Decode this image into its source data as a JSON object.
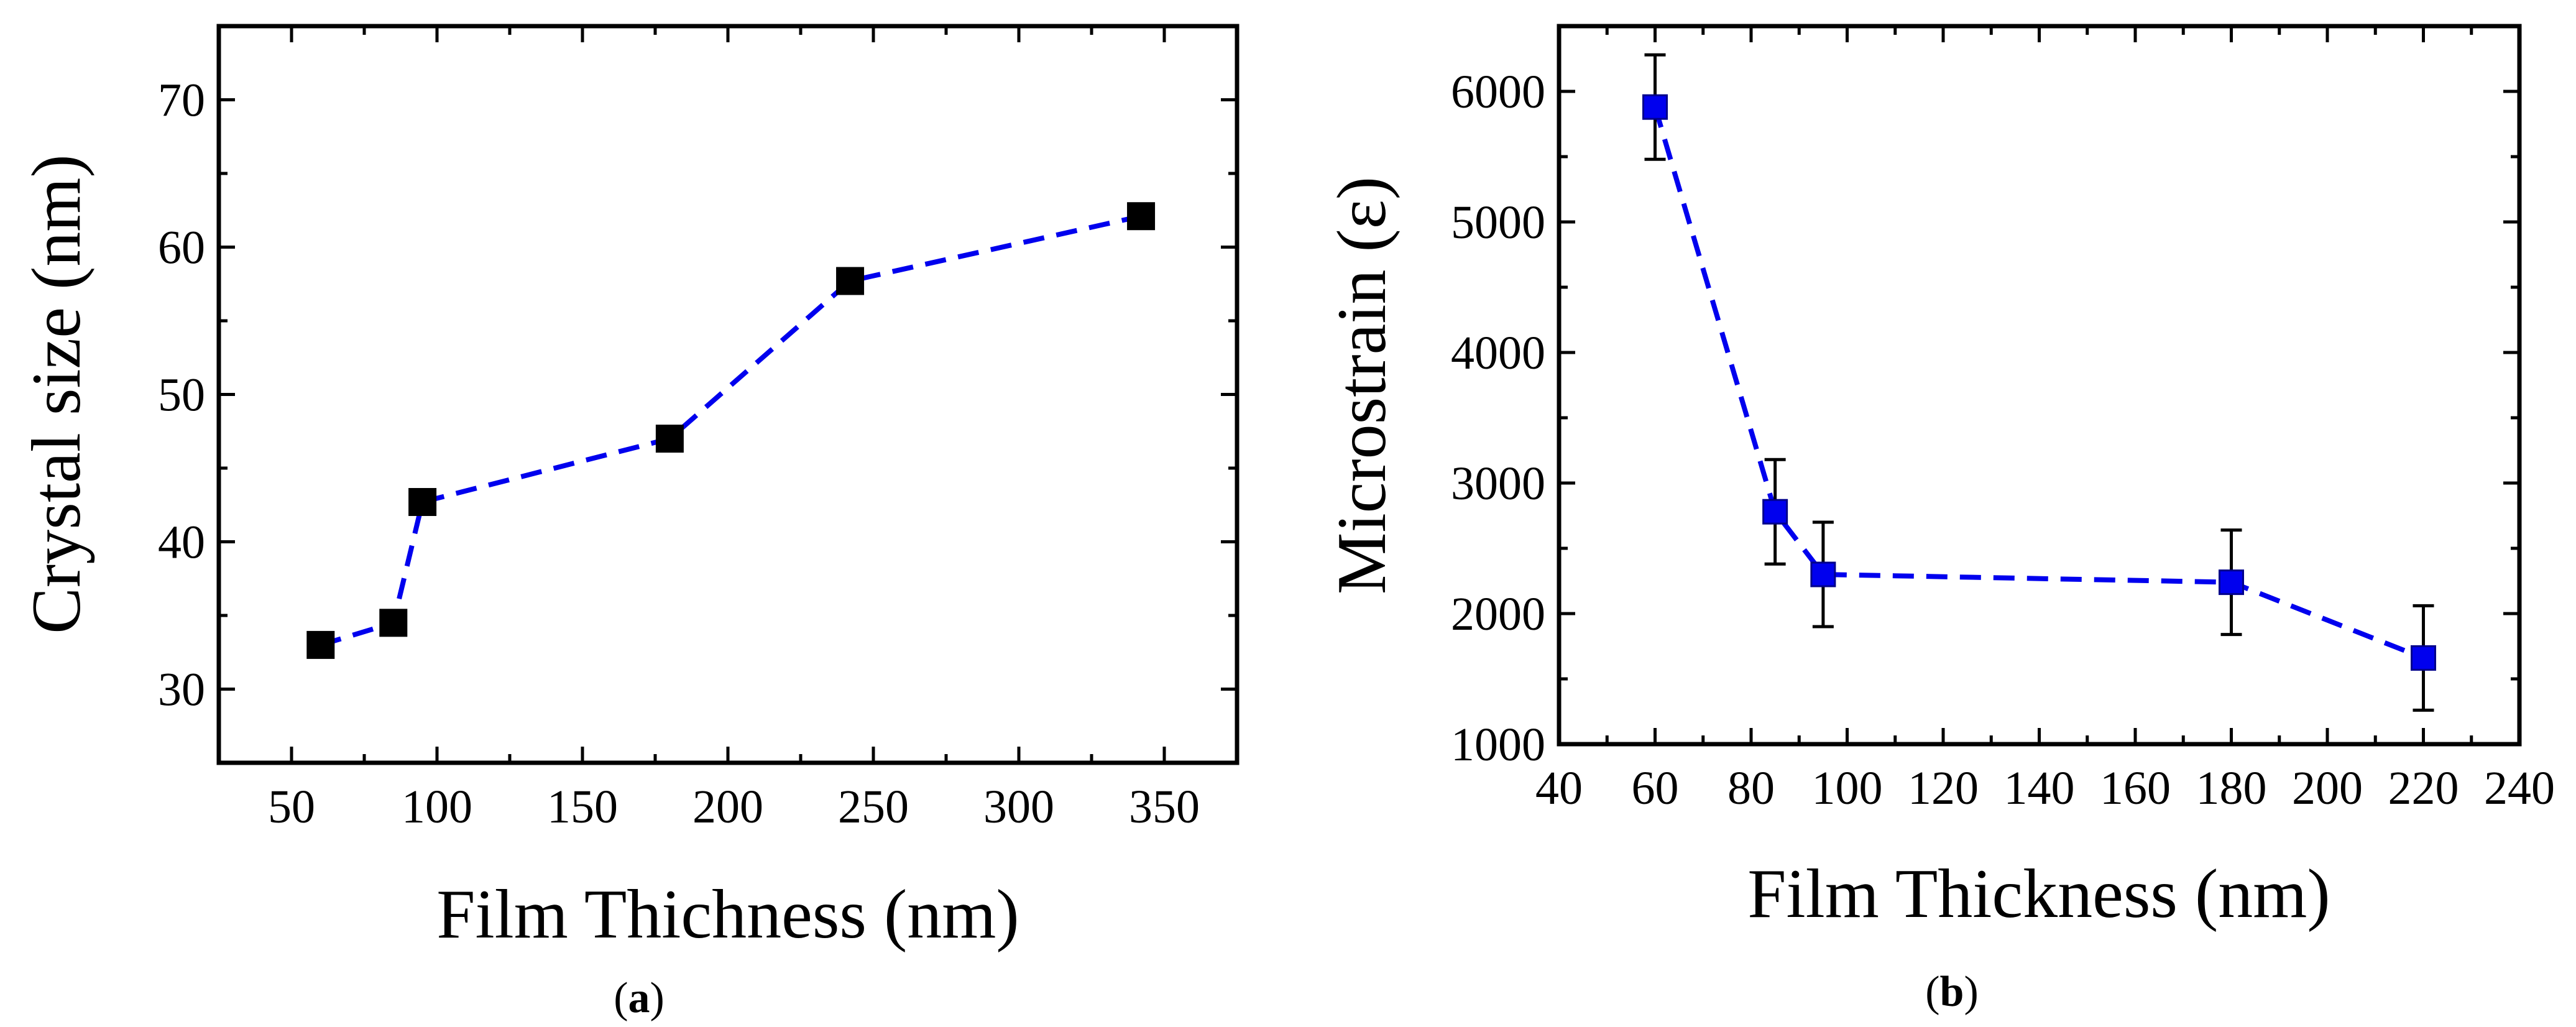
{
  "chart_data": [
    {
      "type": "line",
      "panel_label": "a",
      "title": "",
      "xlabel": "Film Thichness (nm)",
      "ylabel": "Crystal size (nm)",
      "xlim": [
        25,
        375
      ],
      "ylim": [
        25,
        75
      ],
      "xticks": [
        50,
        100,
        150,
        200,
        250,
        300,
        350
      ],
      "yticks": [
        30,
        40,
        50,
        60,
        70
      ],
      "grid": false,
      "series": [
        {
          "name": "Crystal size",
          "marker": "square",
          "marker_color": "#000000",
          "line_color": "#0000ee",
          "line_style": "dashed",
          "x": [
            60,
            85,
            95,
            180,
            242,
            342
          ],
          "y": [
            33.0,
            34.5,
            42.7,
            47.0,
            57.7,
            62.1
          ]
        }
      ]
    },
    {
      "type": "line",
      "panel_label": "b",
      "title": "",
      "xlabel": "Film Thickness (nm)",
      "ylabel": "Microstrain (ε)",
      "xlim": [
        40,
        240
      ],
      "ylim": [
        1000,
        6500
      ],
      "xticks": [
        40,
        60,
        80,
        100,
        120,
        140,
        160,
        180,
        200,
        220,
        240
      ],
      "yticks": [
        1000,
        2000,
        3000,
        4000,
        5000,
        6000
      ],
      "grid": false,
      "series": [
        {
          "name": "Microstrain",
          "marker": "square",
          "marker_color": "#0000ee",
          "line_color": "#0000ee",
          "line_style": "dashed",
          "x": [
            60,
            85,
            95,
            180,
            220
          ],
          "y": [
            5880,
            2780,
            2300,
            2240,
            1660
          ],
          "yerr": [
            400,
            400,
            400,
            400,
            400
          ]
        }
      ]
    }
  ]
}
